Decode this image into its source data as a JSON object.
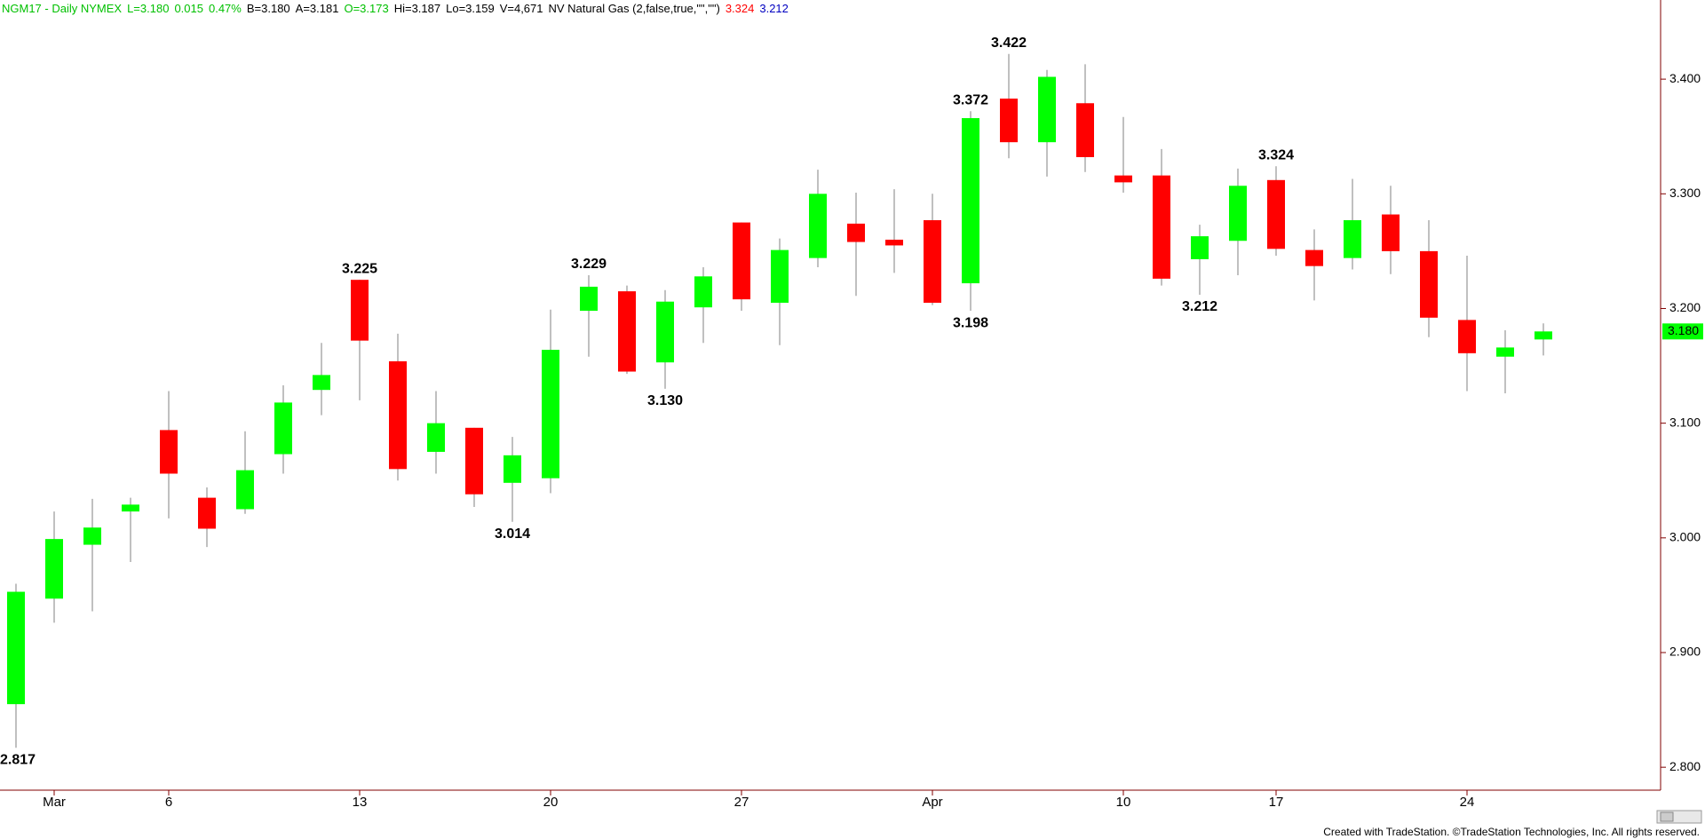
{
  "chart_data": {
    "type": "candlestick",
    "header": [
      {
        "text": "NGM17 - Daily NYMEX",
        "color": "#00c000"
      },
      {
        "text": "L=3.180",
        "color": "#00c000"
      },
      {
        "text": "0.015",
        "color": "#00c000"
      },
      {
        "text": "0.47%",
        "color": "#00c000"
      },
      {
        "text": "B=3.180",
        "color": "#000000"
      },
      {
        "text": "A=3.181",
        "color": "#000000"
      },
      {
        "text": "O=3.173",
        "color": "#00c000"
      },
      {
        "text": "Hi=3.187",
        "color": "#000000"
      },
      {
        "text": "Lo=3.159",
        "color": "#000000"
      },
      {
        "text": "V=4,671",
        "color": "#000000"
      },
      {
        "text": "NV Natural Gas (2,false,true,\"\",\"\")",
        "color": "#000000"
      },
      {
        "text": "3.324",
        "color": "#ff0000"
      },
      {
        "text": "3.212",
        "color": "#0000c0"
      }
    ],
    "categories": [
      null,
      "Mar",
      null,
      null,
      "6",
      null,
      null,
      null,
      null,
      "13",
      null,
      null,
      null,
      null,
      "20",
      null,
      null,
      null,
      null,
      "27",
      null,
      null,
      null,
      null,
      "Apr",
      null,
      null,
      null,
      null,
      "10",
      null,
      null,
      null,
      "17",
      null,
      null,
      null,
      null,
      "24",
      null,
      null
    ],
    "open": [
      2.855,
      2.947,
      2.994,
      3.023,
      3.094,
      3.035,
      3.025,
      3.073,
      3.129,
      3.225,
      3.154,
      3.075,
      3.096,
      3.048,
      3.052,
      3.198,
      3.215,
      3.153,
      3.201,
      3.275,
      3.205,
      3.244,
      3.274,
      3.26,
      3.277,
      3.222,
      3.383,
      3.345,
      3.379,
      3.316,
      3.316,
      3.243,
      3.259,
      3.312,
      3.251,
      3.244,
      3.282,
      3.25,
      3.19,
      3.158,
      3.173
    ],
    "high": [
      2.96,
      3.023,
      3.034,
      3.035,
      3.128,
      3.044,
      3.093,
      3.133,
      3.17,
      3.225,
      3.178,
      3.128,
      3.096,
      3.088,
      3.199,
      3.229,
      3.22,
      3.216,
      3.236,
      3.275,
      3.261,
      3.321,
      3.301,
      3.304,
      3.3,
      3.372,
      3.422,
      3.408,
      3.413,
      3.367,
      3.339,
      3.273,
      3.322,
      3.324,
      3.269,
      3.313,
      3.307,
      3.277,
      3.246,
      3.181,
      3.187
    ],
    "low": [
      2.817,
      2.926,
      2.936,
      2.979,
      3.017,
      2.992,
      3.021,
      3.056,
      3.107,
      3.12,
      3.05,
      3.056,
      3.027,
      3.014,
      3.039,
      3.158,
      3.143,
      3.13,
      3.17,
      3.198,
      3.168,
      3.236,
      3.211,
      3.231,
      3.203,
      3.198,
      3.331,
      3.315,
      3.319,
      3.301,
      3.22,
      3.212,
      3.229,
      3.246,
      3.207,
      3.234,
      3.23,
      3.175,
      3.128,
      3.126,
      3.159
    ],
    "close": [
      2.953,
      2.999,
      3.009,
      3.029,
      3.056,
      3.008,
      3.059,
      3.118,
      3.142,
      3.172,
      3.06,
      3.1,
      3.038,
      3.072,
      3.164,
      3.219,
      3.145,
      3.206,
      3.228,
      3.208,
      3.251,
      3.3,
      3.258,
      3.255,
      3.205,
      3.366,
      3.345,
      3.402,
      3.332,
      3.31,
      3.226,
      3.263,
      3.307,
      3.252,
      3.237,
      3.277,
      3.25,
      3.192,
      3.161,
      3.166,
      3.18
    ],
    "high_labels": [
      null,
      null,
      null,
      null,
      null,
      null,
      null,
      null,
      null,
      "3.225",
      null,
      null,
      null,
      null,
      null,
      "3.229",
      null,
      null,
      null,
      null,
      null,
      null,
      null,
      null,
      null,
      "3.372",
      "3.422",
      null,
      null,
      null,
      null,
      null,
      null,
      "3.324",
      null,
      null,
      null,
      null,
      null,
      null,
      null
    ],
    "low_labels": [
      "2.817",
      null,
      null,
      null,
      null,
      null,
      null,
      null,
      null,
      null,
      null,
      null,
      null,
      "3.014",
      null,
      null,
      null,
      "3.130",
      null,
      null,
      null,
      null,
      null,
      null,
      null,
      "3.198",
      null,
      null,
      null,
      null,
      null,
      "3.212",
      null,
      null,
      null,
      null,
      null,
      null,
      null,
      null,
      null
    ],
    "up_color": "#00ff00",
    "down_color": "#ff0000",
    "last_label": "3.180",
    "ylim": [
      2.78,
      3.469
    ],
    "yticks": [
      {
        "value": 2.8,
        "label": "2.800"
      },
      {
        "value": 2.9,
        "label": "2.900"
      },
      {
        "value": 3.0,
        "label": "3.000"
      },
      {
        "value": 3.1,
        "label": "3.100"
      },
      {
        "value": 3.2,
        "label": "3.200"
      },
      {
        "value": 3.3,
        "label": "3.300"
      },
      {
        "value": 3.4,
        "label": "3.400"
      }
    ],
    "footer": "Created with TradeStation. ©TradeStation Technologies, Inc. All rights reserved."
  }
}
